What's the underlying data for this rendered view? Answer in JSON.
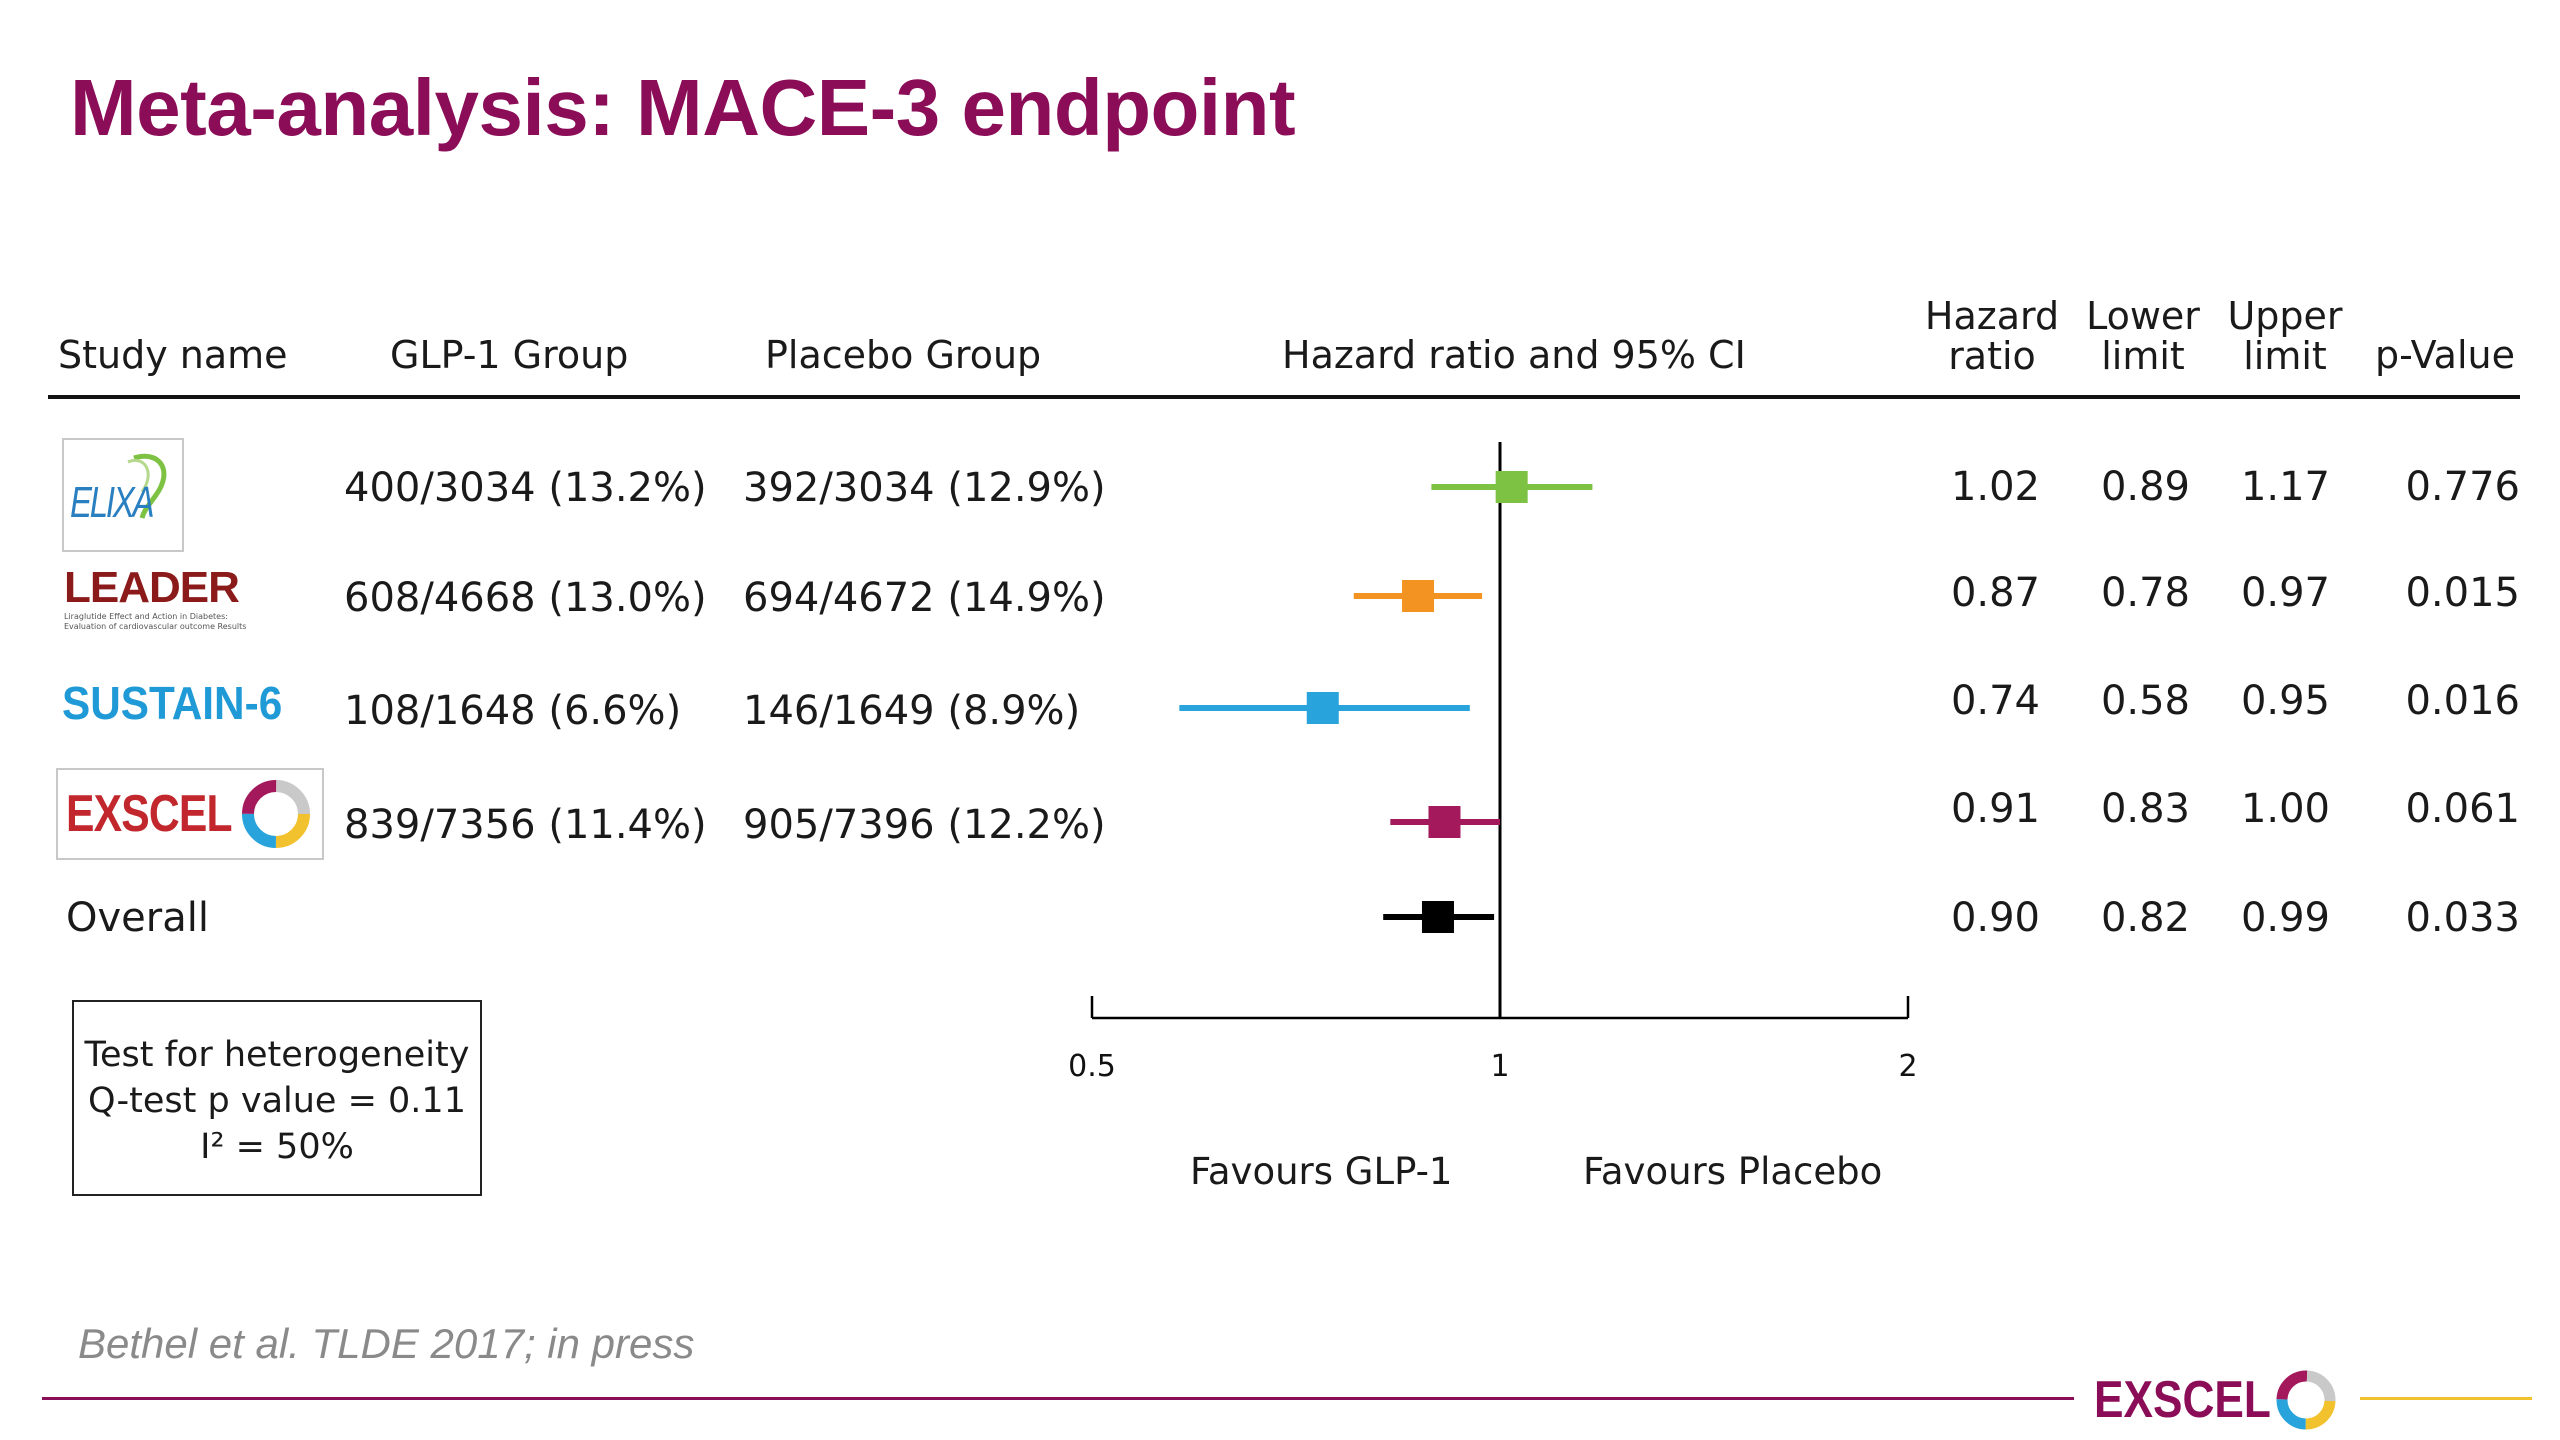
{
  "slide": {
    "title": "Meta-analysis: MACE-3 endpoint",
    "citation": "Bethel et al.  TLDE 2017; in press",
    "footer_logo_text": "EXSCEL"
  },
  "table": {
    "headers": {
      "study": "Study name",
      "glp1": "GLP-1 Group",
      "placebo": "Placebo Group",
      "plot": "Hazard ratio and 95% CI",
      "hr_line1": "Hazard",
      "hr_line2": "ratio",
      "lower_line1": "Lower",
      "lower_line2": "limit",
      "upper_line1": "Upper",
      "upper_line2": "limit",
      "p": "p-Value"
    },
    "logos": {
      "elixa": "ELIXA",
      "leader": "LEADER",
      "leader_sub1": "Liraglutide Effect and Action in Diabetes:",
      "leader_sub2": "Evaluation of cardiovascular outcome Results",
      "sustain": "SUSTAIN-6",
      "exscel": "EXSCEL"
    },
    "rows": [
      {
        "study": "ELIXA",
        "glp1": "400/3034 (13.2%)",
        "placebo": "392/3034 (12.9%)",
        "hr": "1.02",
        "lower": "0.89",
        "upper": "1.17",
        "p": "0.776"
      },
      {
        "study": "LEADER",
        "glp1": "608/4668 (13.0%)",
        "placebo": "694/4672 (14.9%)",
        "hr": "0.87",
        "lower": "0.78",
        "upper": "0.97",
        "p": "0.015"
      },
      {
        "study": "SUSTAIN-6",
        "glp1": "108/1648 (6.6%)",
        "placebo": "146/1649 (8.9%)",
        "hr": "0.74",
        "lower": "0.58",
        "upper": "0.95",
        "p": "0.016"
      },
      {
        "study": "EXSCEL",
        "glp1": "839/7356 (11.4%)",
        "placebo": "905/7396 (12.2%)",
        "hr": "0.91",
        "lower": "0.83",
        "upper": "1.00",
        "p": "0.061"
      },
      {
        "study": "Overall",
        "glp1": "",
        "placebo": "",
        "hr": "0.90",
        "lower": "0.82",
        "upper": "0.99",
        "p": "0.033"
      }
    ]
  },
  "heterogeneity": {
    "line1": "Test for heterogeneity",
    "line2": "Q-test p value = 0.11",
    "line3": "I² = 50%"
  },
  "chart_data": {
    "type": "forest",
    "x_scale": "log",
    "xlim": [
      0.5,
      2
    ],
    "reference_line": 1,
    "tick_labels": [
      "0.5",
      "1",
      "2"
    ],
    "xlabel_left": "Favours GLP-1",
    "xlabel_right": "Favours Placebo",
    "series": [
      {
        "name": "ELIXA",
        "hr": 1.02,
        "lower": 0.89,
        "upper": 1.17,
        "color": "#7dc242"
      },
      {
        "name": "LEADER",
        "hr": 0.87,
        "lower": 0.78,
        "upper": 0.97,
        "color": "#f39321"
      },
      {
        "name": "SUSTAIN-6",
        "hr": 0.74,
        "lower": 0.58,
        "upper": 0.95,
        "color": "#29a3db"
      },
      {
        "name": "EXSCEL",
        "hr": 0.91,
        "lower": 0.83,
        "upper": 1.0,
        "color": "#a3195b"
      },
      {
        "name": "Overall",
        "hr": 0.9,
        "lower": 0.82,
        "upper": 0.99,
        "color": "#000000"
      }
    ]
  },
  "colors": {
    "title": "#8b0c57",
    "exscel_red": "#c1272d",
    "leader_red": "#8b1a1a",
    "sustain_blue": "#1f9ad6",
    "elixa_blue": "#2a7fc0",
    "footer_left_line": "#8b0c57",
    "footer_right_line": "#f2c12e"
  }
}
